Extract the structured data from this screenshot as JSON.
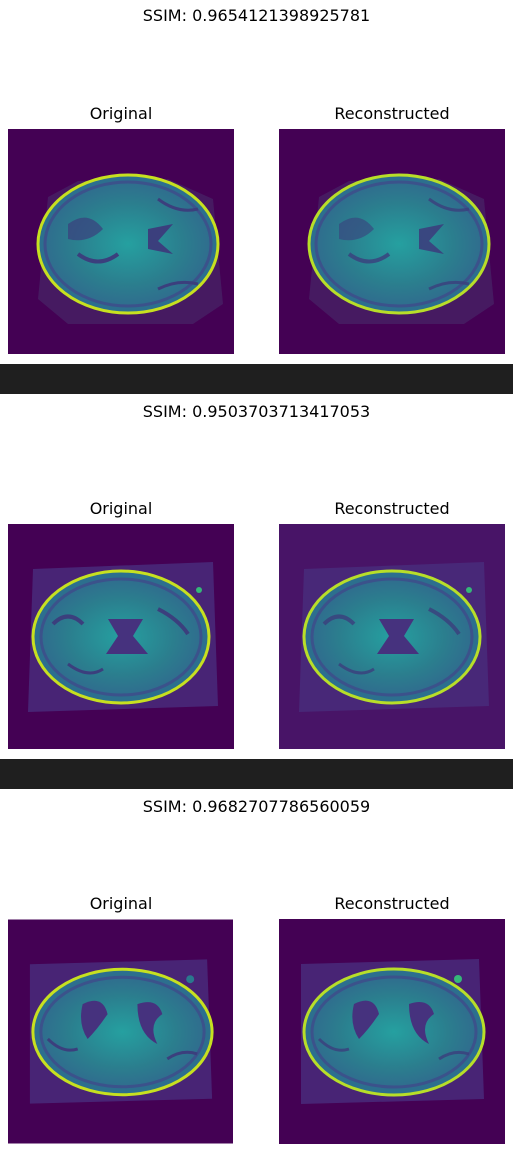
{
  "panels": [
    {
      "ssim_text": "SSIM: 0.9654121398925781",
      "left_title": "Original",
      "right_title": "Reconstructed"
    },
    {
      "ssim_text": "SSIM: 0.9503703713417053",
      "left_title": "Original",
      "right_title": "Reconstructed"
    },
    {
      "ssim_text": "SSIM: 0.9682707786560059",
      "left_title": "Original",
      "right_title": "Reconstructed"
    }
  ],
  "colors": {
    "background_dark": "#440154",
    "separator": "#1f1f1f",
    "tissue": "#2a7f8e",
    "bright_edge": "#c7e020"
  }
}
